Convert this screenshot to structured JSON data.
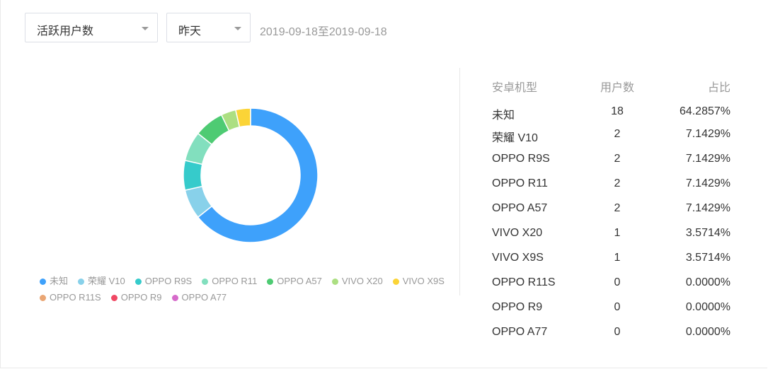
{
  "filters": {
    "metric": "活跃用户数",
    "period": "昨天",
    "date_range": "2019-09-18至2019-09-18"
  },
  "table": {
    "headers": [
      "安卓机型",
      "用户数",
      "占比"
    ],
    "rows": [
      {
        "model": "未知",
        "users": "18",
        "share": "64.2857%"
      },
      {
        "model": "荣耀 V10",
        "users": "2",
        "share": "7.1429%"
      },
      {
        "model": "OPPO R9S",
        "users": "2",
        "share": "7.1429%"
      },
      {
        "model": "OPPO R11",
        "users": "2",
        "share": "7.1429%"
      },
      {
        "model": "OPPO A57",
        "users": "2",
        "share": "7.1429%"
      },
      {
        "model": "VIVO X20",
        "users": "1",
        "share": "3.5714%"
      },
      {
        "model": "VIVO X9S",
        "users": "1",
        "share": "3.5714%"
      },
      {
        "model": "OPPO R11S",
        "users": "0",
        "share": "0.0000%"
      },
      {
        "model": "OPPO R9",
        "users": "0",
        "share": "0.0000%"
      },
      {
        "model": "OPPO A77",
        "users": "0",
        "share": "0.0000%"
      }
    ]
  },
  "chart_data": {
    "type": "pie",
    "style": "donut",
    "legend_position": "bottom",
    "categories": [
      "未知",
      "荣耀 V10",
      "OPPO R9S",
      "OPPO R11",
      "OPPO A57",
      "VIVO X20",
      "VIVO X9S",
      "OPPO R11S",
      "OPPO R9",
      "OPPO A77"
    ],
    "values": [
      18,
      2,
      2,
      2,
      2,
      1,
      1,
      0,
      0,
      0
    ],
    "colors": [
      "#3ea1fb",
      "#88d1ea",
      "#36cbcb",
      "#82dfbe",
      "#4ecb73",
      "#acdf82",
      "#fbd437",
      "#eaa674",
      "#f04864",
      "#d66bca"
    ]
  }
}
